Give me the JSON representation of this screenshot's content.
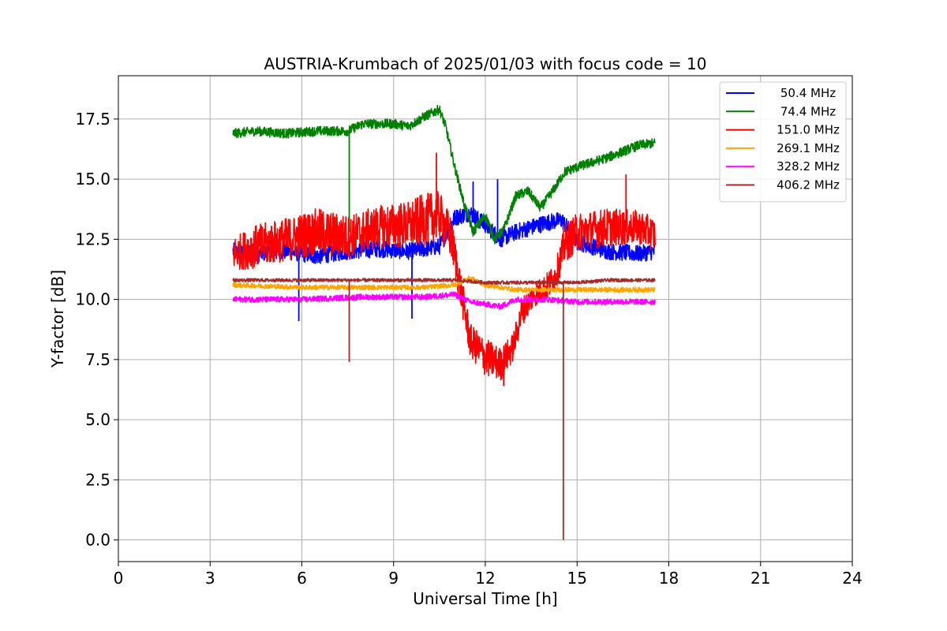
{
  "chart_data": {
    "type": "line",
    "title": "AUSTRIA-Krumbach of 2025/01/03 with focus code = 10",
    "xlabel": "Universal Time [h]",
    "ylabel": "Y-factor [dB]",
    "xlim": [
      0,
      24
    ],
    "ylim": [
      -0.9,
      19.3
    ],
    "xticks": [
      0,
      3,
      6,
      9,
      12,
      15,
      18,
      21,
      24
    ],
    "yticks": [
      0.0,
      2.5,
      5.0,
      7.5,
      10.0,
      12.5,
      15.0,
      17.5
    ],
    "xtick_labels": [
      "0",
      "3",
      "6",
      "9",
      "12",
      "15",
      "18",
      "21",
      "24"
    ],
    "ytick_labels": [
      "0.0",
      "2.5",
      "5.0",
      "7.5",
      "10.0",
      "12.5",
      "15.0",
      "17.5"
    ],
    "grid": true,
    "legend_position": "top-right",
    "series": [
      {
        "name": "50.4 MHz",
        "color": "#0000ff",
        "x": [
          3.75,
          4.5,
          5.5,
          6.5,
          7.5,
          8.5,
          9.5,
          10.5,
          11.0,
          11.5,
          12.0,
          12.5,
          13.0,
          13.5,
          14.0,
          14.5,
          15.0,
          16.0,
          17.0,
          17.55
        ],
        "y": [
          12.0,
          11.9,
          12.0,
          11.8,
          12.0,
          12.1,
          12.0,
          12.2,
          13.4,
          13.6,
          13.1,
          12.5,
          12.8,
          13.0,
          13.2,
          13.3,
          12.4,
          12.0,
          11.9,
          12.0
        ],
        "spikes": [
          [
            5.9,
            9.1
          ],
          [
            9.6,
            9.2
          ],
          [
            12.4,
            15.0
          ],
          [
            11.6,
            14.9
          ]
        ]
      },
      {
        "name": "74.4 MHz",
        "color": "#008000",
        "x": [
          3.75,
          4.5,
          5.5,
          6.5,
          7.5,
          8.0,
          9.0,
          9.5,
          10.0,
          10.5,
          10.7,
          11.0,
          11.3,
          11.6,
          12.0,
          12.3,
          12.6,
          13.0,
          13.4,
          13.8,
          14.2,
          14.6,
          15.0,
          16.0,
          17.0,
          17.55
        ],
        "y": [
          16.9,
          17.0,
          16.9,
          17.0,
          17.0,
          17.3,
          17.3,
          17.2,
          17.6,
          17.9,
          17.2,
          15.5,
          14.0,
          12.8,
          13.5,
          12.5,
          12.9,
          14.3,
          14.5,
          13.8,
          14.5,
          15.3,
          15.5,
          15.9,
          16.4,
          16.5
        ],
        "spikes": [
          [
            7.55,
            12.8
          ]
        ]
      },
      {
        "name": "151.0 MHz",
        "color": "#ff0000",
        "x": [
          3.75,
          4.5,
          5.5,
          6.5,
          7.5,
          8.5,
          9.5,
          10.0,
          10.5,
          10.9,
          11.2,
          11.5,
          12.0,
          12.5,
          12.9,
          13.2,
          13.6,
          14.0,
          14.3,
          14.6,
          15.0,
          16.0,
          17.0,
          17.55
        ],
        "y": [
          11.9,
          12.2,
          12.5,
          12.8,
          12.6,
          13.0,
          13.1,
          13.3,
          13.5,
          12.5,
          10.4,
          8.3,
          7.6,
          7.3,
          8.0,
          9.5,
          10.2,
          10.5,
          11.0,
          12.3,
          12.8,
          13.0,
          13.0,
          12.7
        ],
        "amplitude": [
          0.7,
          0.9,
          0.9,
          1.0,
          0.9,
          0.9,
          1.0,
          1.1,
          1.0,
          0.9,
          0.8,
          0.7,
          0.8,
          0.7,
          0.6,
          0.6,
          0.5,
          0.6,
          0.6,
          0.8,
          0.8,
          0.8,
          0.7,
          0.7
        ],
        "spikes": [
          [
            10.4,
            16.1
          ],
          [
            16.6,
            15.2
          ],
          [
            12.6,
            6.4
          ]
        ]
      },
      {
        "name": "269.1 MHz",
        "color": "#ffa500",
        "x": [
          3.75,
          6.0,
          8.0,
          10.0,
          11.0,
          11.5,
          12.0,
          13.0,
          14.0,
          15.0,
          16.0,
          17.55
        ],
        "y": [
          10.6,
          10.5,
          10.5,
          10.5,
          10.6,
          10.9,
          10.6,
          10.4,
          10.4,
          10.4,
          10.4,
          10.4
        ]
      },
      {
        "name": "328.2 MHz",
        "color": "#ff00ff",
        "x": [
          3.75,
          6.0,
          8.0,
          10.0,
          11.0,
          11.5,
          12.0,
          12.5,
          13.0,
          14.0,
          15.0,
          16.0,
          17.55
        ],
        "y": [
          10.0,
          10.0,
          10.1,
          10.1,
          10.2,
          9.9,
          9.8,
          9.7,
          10.0,
          10.0,
          9.9,
          9.9,
          9.9
        ]
      },
      {
        "name": "406.2 MHz",
        "color": "#a52a2a",
        "x": [
          3.75,
          6.0,
          8.0,
          10.0,
          11.0,
          12.0,
          13.0,
          14.0,
          15.0,
          16.0,
          17.55
        ],
        "y": [
          10.8,
          10.8,
          10.8,
          10.8,
          10.8,
          10.7,
          10.7,
          10.7,
          10.7,
          10.8,
          10.8
        ],
        "spikes": [
          [
            7.55,
            7.4
          ],
          [
            14.55,
            0.0
          ]
        ]
      }
    ]
  }
}
